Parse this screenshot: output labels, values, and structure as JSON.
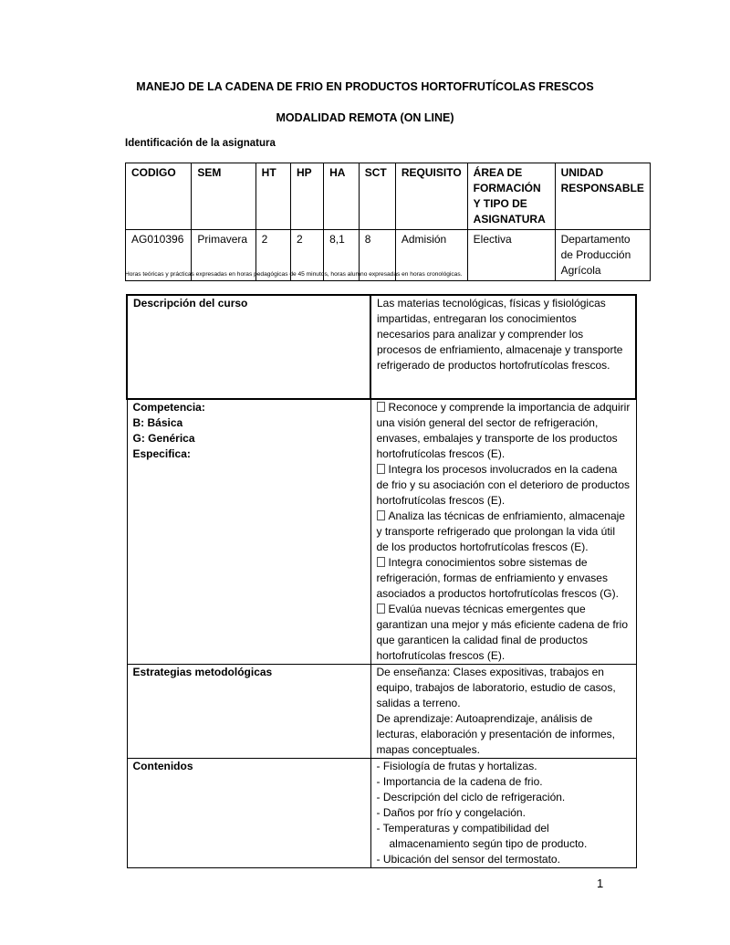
{
  "title": "MANEJO DE LA CADENA DE FRIO EN PRODUCTOS HORTOFRUTÍCOLAS FRESCOS",
  "subtitle": "MODALIDAD REMOTA (ON LINE)",
  "section_heading": "Identificación de la asignatura",
  "id_table": {
    "headers": [
      "CODIGO",
      "SEM",
      "HT",
      "HP",
      "HA",
      "SCT",
      "REQUISITO",
      "ÁREA DE FORMACIÓN Y TIPO DE ASIGNATURA",
      "UNIDAD RESPONSABLE"
    ],
    "row": [
      "AG010396",
      "Primavera",
      "2",
      "2",
      "8,1",
      "8",
      "Admisión",
      "Electiva",
      "Departamento de Producción Agrícola"
    ]
  },
  "footnote": "Horas teóricas y prácticas expresadas en horas pedagógicas de 45 minutos, horas alumno expresadas en horas cronológicas.",
  "course_table": {
    "descripcion_label": "Descripción del  curso",
    "descripcion": "Las materias tecnológicas, físicas y fisiológicas impartidas, entregaran los conocimientos necesarios para analizar y comprender los procesos de enfriamiento, almacenaje y transporte refrigerado de productos hortofrutícolas frescos.",
    "competencia_labels": [
      "Competencia:",
      "B: Básica",
      "G: Genérica",
      "Especifica:"
    ],
    "competencias": [
      "Reconoce y comprende la importancia de adquirir una visión general del sector de refrigeración, envases, embalajes y transporte de los productos hortofrutícolas frescos (E).",
      "Integra los procesos involucrados en la cadena de frio y su asociación con el deterioro de productos hortofrutícolas frescos (E).",
      "Analiza las técnicas de enfriamiento, almacenaje y transporte refrigerado que prolongan la vida útil de los productos hortofrutícolas frescos (E).",
      "Integra conocimientos sobre sistemas de refrigeración, formas de enfriamiento y envases asociados a productos hortofrutícolas frescos (G).",
      "Evalúa nuevas técnicas emergentes que garantizan una mejor y más eficiente cadena de frio que garanticen la calidad final de productos hortofrutícolas frescos (E)."
    ],
    "estrategias_label": "Estrategias metodológicas",
    "estrategias": [
      "De enseñanza: Clases expositivas, trabajos en equipo, trabajos de laboratorio, estudio de casos, salidas a terreno.",
      "De aprendizaje: Autoaprendizaje, análisis de lecturas, elaboración y presentación de informes, mapas conceptuales."
    ],
    "contenidos_label": "Contenidos",
    "contenidos": [
      "-  Fisiología de frutas y hortalizas.",
      "-  Importancia de la cadena de frio.",
      "-  Descripción del ciclo de refrigeración.",
      "-  Daños por frío y congelación.",
      "-  Temperaturas y compatibilidad del almacenamiento según tipo de producto.",
      "-  Ubicación del sensor del termostato."
    ]
  },
  "page_number": "1"
}
